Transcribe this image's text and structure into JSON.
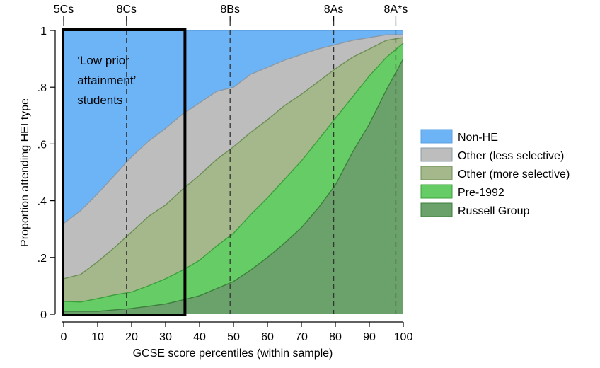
{
  "chart_data": {
    "type": "area",
    "stacked": true,
    "xlabel": "GCSE score percentiles (within sample)",
    "ylabel": "Proportion attending HEI type",
    "xlim": [
      0,
      100
    ],
    "ylim": [
      0,
      1
    ],
    "x_ticks": [
      0,
      10,
      20,
      30,
      40,
      50,
      60,
      70,
      80,
      90,
      100
    ],
    "y_ticks": [
      {
        "value": 0,
        "label": "0"
      },
      {
        "value": 0.2,
        "label": ".2"
      },
      {
        "value": 0.4,
        "label": ".4"
      },
      {
        "value": 0.6,
        "label": ".6"
      },
      {
        "value": 0.8,
        "label": ".8"
      },
      {
        "value": 1,
        "label": "1"
      }
    ],
    "x": [
      0,
      5,
      10,
      15,
      20,
      25,
      30,
      35,
      40,
      45,
      50,
      55,
      60,
      65,
      70,
      75,
      80,
      85,
      90,
      95,
      100
    ],
    "cumulative_series": [
      {
        "name": "Russell Group",
        "color": "#6ba26b",
        "line": "#3c7f3c",
        "values": [
          0.01,
          0.01,
          0.01,
          0.015,
          0.02,
          0.028,
          0.036,
          0.05,
          0.065,
          0.09,
          0.115,
          0.155,
          0.2,
          0.25,
          0.305,
          0.375,
          0.455,
          0.57,
          0.67,
          0.79,
          0.9
        ]
      },
      {
        "name": "Pre-1992",
        "color": "#66cc66",
        "line": "#3c9f3c",
        "values": [
          0.045,
          0.043,
          0.055,
          0.068,
          0.078,
          0.1,
          0.125,
          0.155,
          0.19,
          0.24,
          0.285,
          0.35,
          0.41,
          0.475,
          0.54,
          0.615,
          0.69,
          0.765,
          0.84,
          0.905,
          0.955
        ]
      },
      {
        "name": "Other (more selective)",
        "color": "#a5b88c",
        "line": "#6b8f55",
        "values": [
          0.125,
          0.14,
          0.185,
          0.235,
          0.29,
          0.345,
          0.385,
          0.44,
          0.49,
          0.545,
          0.59,
          0.64,
          0.685,
          0.735,
          0.775,
          0.82,
          0.865,
          0.905,
          0.935,
          0.965,
          0.975
        ]
      },
      {
        "name": "Other (less selective)",
        "color": "#bdbdbd",
        "line": "#8a9aa8",
        "values": [
          0.32,
          0.365,
          0.425,
          0.49,
          0.555,
          0.61,
          0.655,
          0.705,
          0.745,
          0.785,
          0.8,
          0.845,
          0.87,
          0.895,
          0.915,
          0.935,
          0.95,
          0.965,
          0.975,
          0.985,
          0.985
        ]
      },
      {
        "name": "Non-HE",
        "color": "#6db4f7",
        "line": "#5aa0e0",
        "values": [
          1,
          1,
          1,
          1,
          1,
          1,
          1,
          1,
          1,
          1,
          1,
          1,
          1,
          1,
          1,
          1,
          1,
          1,
          1,
          1,
          1
        ]
      }
    ],
    "legend": {
      "position": "right",
      "entries": [
        "Non-HE",
        "Other (less selective)",
        "Other (more selective)",
        "Pre-1992",
        "Russell Group"
      ]
    },
    "reference_lines": [
      {
        "x": 0,
        "label": "5Cs"
      },
      {
        "x": 18.5,
        "label": "8Cs"
      },
      {
        "x": 49,
        "label": "8Bs"
      },
      {
        "x": 79.5,
        "label": "8As"
      },
      {
        "x": 97.8,
        "label": "8A*s"
      }
    ],
    "highlight_box": {
      "x0": 0,
      "x1": 35.5,
      "y0": 0,
      "y1": 1
    },
    "annotation": {
      "lines": [
        "‘Low prior",
        "attainment’",
        "students"
      ],
      "x": 4,
      "y": 0.96
    }
  }
}
